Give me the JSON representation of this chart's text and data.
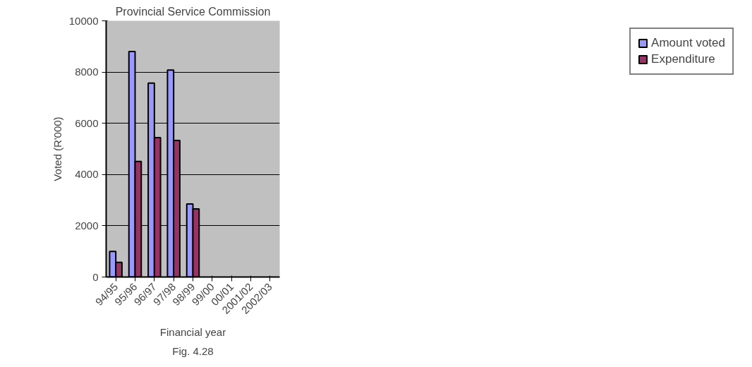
{
  "chart_data": {
    "type": "bar",
    "title": "Provincial Service Commission",
    "xlabel": "Financial year",
    "ylabel": "Voted (R'000)",
    "annotations": [
      "Fig. 4.28"
    ],
    "categories": [
      "94/95",
      "95/96",
      "96/97",
      "97/98",
      "98/99",
      "99/00",
      "00/01",
      "2001/02",
      "2002/03"
    ],
    "series": [
      {
        "name": "Amount voted",
        "color": "#9999ff",
        "values": [
          1000,
          8800,
          7570,
          8080,
          2850,
          null,
          null,
          null,
          null
        ]
      },
      {
        "name": "Expenditure",
        "color": "#993366",
        "values": [
          570,
          4510,
          5440,
          5330,
          2660,
          null,
          null,
          null,
          null
        ]
      }
    ],
    "ylim": [
      0,
      10000
    ],
    "yticks": [
      0,
      2000,
      4000,
      6000,
      8000,
      10000
    ],
    "grid": "y",
    "legend": "right"
  }
}
